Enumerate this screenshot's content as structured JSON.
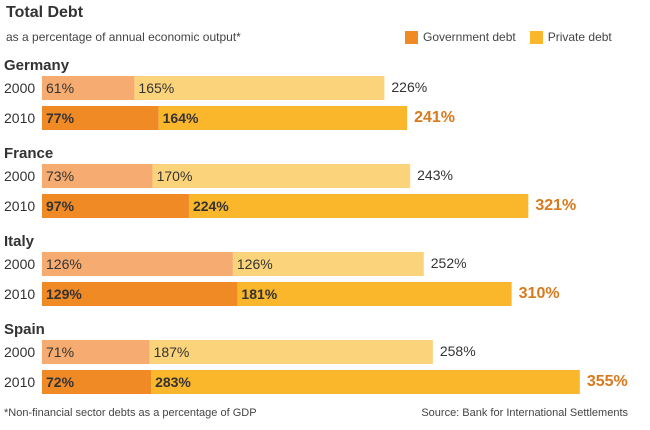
{
  "header": {
    "title": "Total Debt",
    "subtitle": "as a percentage of annual economic output*"
  },
  "footer": {
    "footnote": "*Non-financial sector debts as a percentage of GDP",
    "source": "Source: Bank for International Settlements"
  },
  "colors": {
    "gov_2000": "#f6ab70",
    "priv_2000": "#fbd37a",
    "gov_2010": "#f08a25",
    "priv_2010": "#fbb72c",
    "total_2010": "#d87a1b",
    "text": "#333333"
  },
  "chart_data": {
    "type": "bar",
    "orientation": "horizontal",
    "stacked": true,
    "legend_placement": "top-right",
    "grid": false,
    "series": [
      {
        "name": "Government debt",
        "color": "#f08a25"
      },
      {
        "name": "Private debt",
        "color": "#fbb72c"
      }
    ],
    "groups": [
      {
        "country": "Germany",
        "rows": [
          {
            "year": "2000",
            "gov": 61,
            "priv": 165,
            "total": 226
          },
          {
            "year": "2010",
            "gov": 77,
            "priv": 164,
            "total": 241
          }
        ]
      },
      {
        "country": "France",
        "rows": [
          {
            "year": "2000",
            "gov": 73,
            "priv": 170,
            "total": 243
          },
          {
            "year": "2010",
            "gov": 97,
            "priv": 224,
            "total": 321
          }
        ]
      },
      {
        "country": "Italy",
        "rows": [
          {
            "year": "2000",
            "gov": 126,
            "priv": 126,
            "total": 252
          },
          {
            "year": "2010",
            "gov": 129,
            "priv": 181,
            "total": 310
          }
        ]
      },
      {
        "country": "Spain",
        "rows": [
          {
            "year": "2000",
            "gov": 71,
            "priv": 187,
            "total": 258
          },
          {
            "year": "2010",
            "gov": 72,
            "priv": 283,
            "total": 355
          }
        ]
      }
    ],
    "value_suffix": "%"
  }
}
